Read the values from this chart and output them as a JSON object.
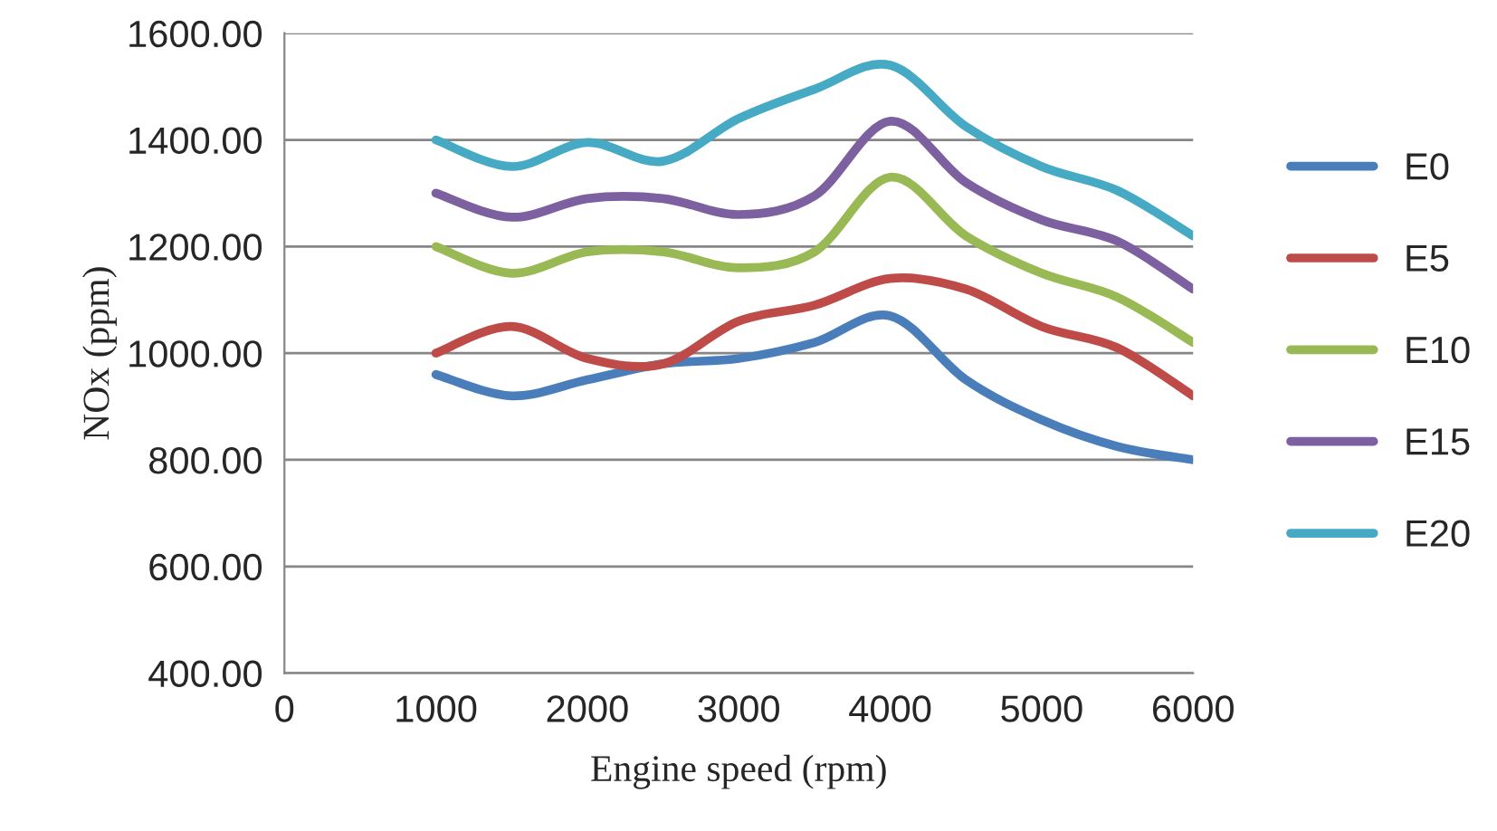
{
  "chart_data": {
    "type": "line",
    "xlabel": "Engine speed (rpm)",
    "ylabel": "NOx (ppm)",
    "x": [
      1000,
      1500,
      2000,
      2500,
      3000,
      3500,
      4000,
      4500,
      5000,
      5500,
      6000
    ],
    "series": [
      {
        "name": "E0",
        "color": "#4a7ebb",
        "values": [
          960,
          920,
          950,
          980,
          990,
          1020,
          1070,
          950,
          875,
          825,
          800
        ]
      },
      {
        "name": "E5",
        "color": "#be4b48",
        "values": [
          1000,
          1050,
          990,
          980,
          1060,
          1090,
          1140,
          1120,
          1050,
          1010,
          920
        ]
      },
      {
        "name": "E10",
        "color": "#98b954",
        "values": [
          1200,
          1150,
          1190,
          1190,
          1160,
          1190,
          1330,
          1220,
          1150,
          1105,
          1020
        ]
      },
      {
        "name": "E15",
        "color": "#7d60a0",
        "values": [
          1300,
          1255,
          1290,
          1290,
          1260,
          1295,
          1435,
          1320,
          1250,
          1210,
          1120
        ]
      },
      {
        "name": "E20",
        "color": "#46aac5",
        "values": [
          1400,
          1350,
          1395,
          1360,
          1440,
          1495,
          1540,
          1425,
          1350,
          1305,
          1220
        ]
      }
    ],
    "xlim": [
      0,
      6000
    ],
    "xticks": [
      0,
      1000,
      2000,
      3000,
      4000,
      5000,
      6000
    ],
    "ylim": [
      400,
      1600
    ],
    "yticks": [
      {
        "value": 400,
        "label": "400.00"
      },
      {
        "value": 600,
        "label": "600.00"
      },
      {
        "value": 800,
        "label": "800.00"
      },
      {
        "value": 1000,
        "label": "1000.00"
      },
      {
        "value": 1200,
        "label": "1200.00"
      },
      {
        "value": 1400,
        "label": "1400.00"
      },
      {
        "value": 1600,
        "label": "1600.00"
      }
    ],
    "grid": "y",
    "legend": "right",
    "marker": "none",
    "line_style": "solid"
  }
}
